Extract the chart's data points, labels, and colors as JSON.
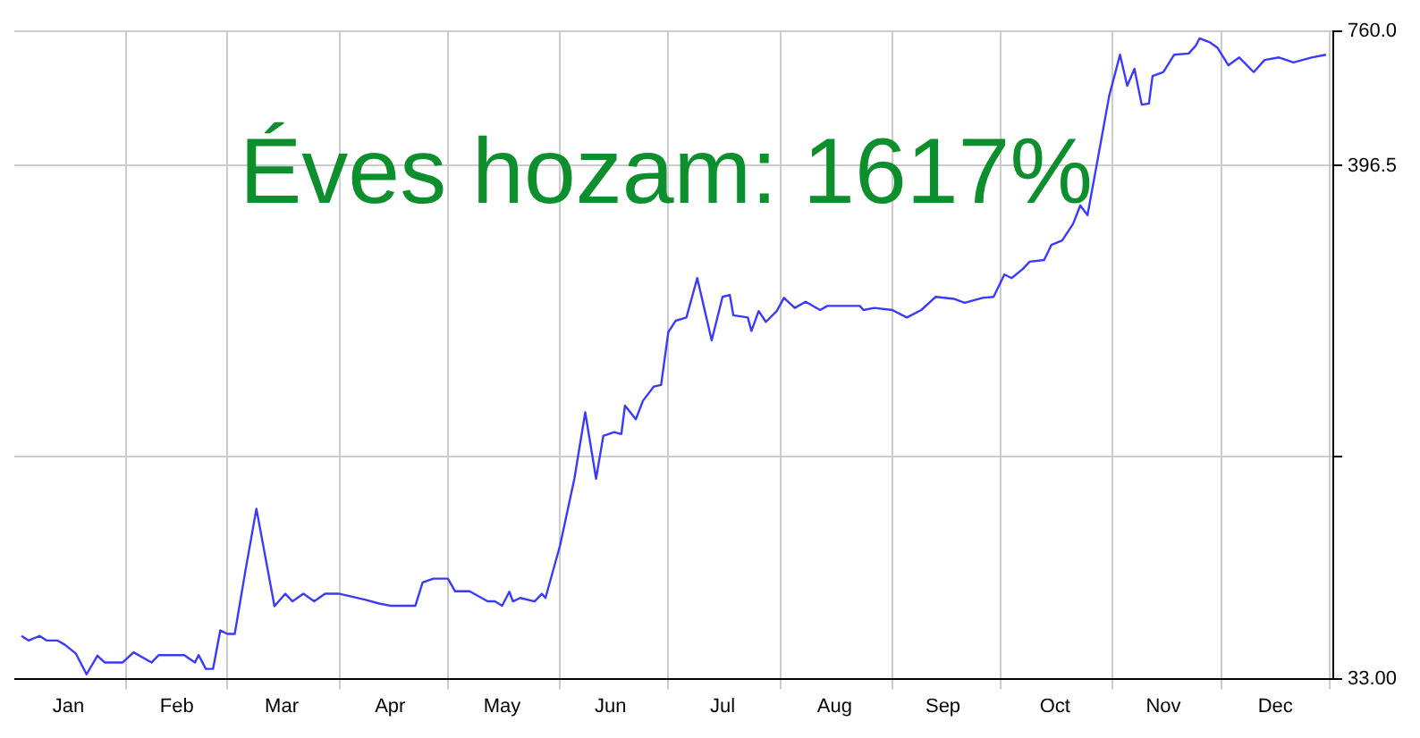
{
  "chart_data": {
    "type": "line",
    "annotations": [
      "Éves hozam: 1617%"
    ],
    "x": [
      "--01-03",
      "--01-05",
      "--01-08",
      "--01-10",
      "--01-13",
      "--01-15",
      "--01-18",
      "--01-21",
      "--01-24",
      "--01-26",
      "--01-31",
      "--02-03",
      "--02-08",
      "--02-10",
      "--02-17",
      "--02-20",
      "--02-21",
      "--02-23",
      "--02-25",
      "--02-27",
      "--03-01",
      "--03-03",
      "--03-06",
      "--03-09",
      "--03-14",
      "--03-17",
      "--03-19",
      "--03-22",
      "--03-25",
      "--03-28",
      "--04-01",
      "--04-08",
      "--04-12",
      "--04-15",
      "--04-22",
      "--04-24",
      "--04-27",
      "--05-01",
      "--05-03",
      "--05-07",
      "--05-12",
      "--05-14",
      "--05-16",
      "--05-18",
      "--05-19",
      "--05-21",
      "--05-25",
      "--05-27",
      "--05-28",
      "--06-01",
      "--06-05",
      "--06-08",
      "--06-11",
      "--06-13",
      "--06-16",
      "--06-18",
      "--06-19",
      "--06-22",
      "--06-24",
      "--06-27",
      "--06-29",
      "--07-01",
      "--07-03",
      "--07-06",
      "--07-09",
      "--07-13",
      "--07-16",
      "--07-18",
      "--07-19",
      "--07-23",
      "--07-24",
      "--07-26",
      "--07-28",
      "--07-31",
      "--08-02",
      "--08-05",
      "--08-08",
      "--08-12",
      "--08-14",
      "--08-23",
      "--08-24",
      "--08-27",
      "--09-01",
      "--09-05",
      "--09-09",
      "--09-13",
      "--09-18",
      "--09-21",
      "--09-26",
      "--09-29",
      "--10-02",
      "--10-04",
      "--10-07",
      "--10-09",
      "--10-13",
      "--10-15",
      "--10-18",
      "--10-21",
      "--10-23",
      "--10-25",
      "--10-28",
      "--10-31",
      "--11-03",
      "--11-05",
      "--11-07",
      "--11-09",
      "--11-11",
      "--11-12",
      "--11-15",
      "--11-18",
      "--11-22",
      "--11-24",
      "--11-25",
      "--11-28",
      "--11-30",
      "--12-03",
      "--12-06",
      "--12-10",
      "--12-13",
      "--12-17",
      "--12-21",
      "--12-26",
      "--12-30"
    ],
    "series": [
      {
        "color": "#3a3aff",
        "values": [
          40.6,
          39.7,
          40.6,
          39.7,
          39.7,
          38.9,
          37.3,
          33.7,
          36.9,
          35.7,
          35.7,
          37.5,
          35.7,
          37,
          37,
          35.7,
          37,
          34.6,
          34.6,
          41.7,
          41,
          41,
          55.9,
          75.2,
          46.9,
          49.8,
          48,
          49.8,
          48,
          49.8,
          49.8,
          48.4,
          47.5,
          47,
          47,
          52.6,
          53.6,
          53.6,
          50.4,
          50.4,
          48,
          48,
          47,
          50.3,
          48,
          48.8,
          48,
          49.8,
          48.8,
          62.8,
          87,
          120,
          87,
          107,
          109,
          108,
          124,
          116,
          127,
          136,
          137,
          177,
          187,
          190,
          230,
          170,
          210,
          212,
          192,
          190,
          178,
          196,
          186,
          196,
          209,
          199,
          205,
          197,
          201,
          201,
          197,
          199,
          197,
          190,
          197,
          210,
          208,
          204,
          209,
          210,
          234,
          230,
          240,
          249,
          251,
          270,
          276,
          299,
          327,
          312,
          416,
          556,
          679,
          584,
          634,
          533,
          536,
          612,
          624,
          679,
          683,
          710,
          735,
          720,
          702,
          645,
          670,
          624,
          662,
          670,
          654,
          670,
          679
        ]
      }
    ],
    "xlim": [
      "--01-01",
      "--12-31"
    ],
    "xticks": [
      {
        "value": "--01-16",
        "label": "Jan"
      },
      {
        "value": "--02-01",
        "label": null
      },
      {
        "value": "--02-15",
        "label": "Feb"
      },
      {
        "value": "--03-01",
        "label": null
      },
      {
        "value": "--03-16",
        "label": "Mar"
      },
      {
        "value": "--04-01",
        "label": null
      },
      {
        "value": "--04-15",
        "label": "Apr"
      },
      {
        "value": "--05-01",
        "label": null
      },
      {
        "value": "--05-16",
        "label": "May"
      },
      {
        "value": "--06-01",
        "label": null
      },
      {
        "value": "--06-15",
        "label": "Jun"
      },
      {
        "value": "--07-01",
        "label": null
      },
      {
        "value": "--07-16",
        "label": "Jul"
      },
      {
        "value": "--08-01",
        "label": null
      },
      {
        "value": "--08-16",
        "label": "Aug"
      },
      {
        "value": "--09-01",
        "label": null
      },
      {
        "value": "--09-15",
        "label": "Sep"
      },
      {
        "value": "--10-01",
        "label": null
      },
      {
        "value": "--10-16",
        "label": "Oct"
      },
      {
        "value": "--11-01",
        "label": null
      },
      {
        "value": "--11-15",
        "label": "Nov"
      },
      {
        "value": "--12-01",
        "label": null
      },
      {
        "value": "--12-16",
        "label": "Dec"
      },
      {
        "value": "--12-31",
        "label": null
      }
    ],
    "ylim": [
      33,
      760
    ],
    "yticks": [
      {
        "value": 33,
        "label": "33.00"
      },
      {
        "value": 97,
        "label": null
      },
      {
        "value": 396.5,
        "label": "396.5"
      },
      {
        "value": 760,
        "label": "760.0"
      }
    ],
    "log": "y",
    "grid": true,
    "legend": false,
    "marker": "none",
    "line_style": "solid"
  }
}
